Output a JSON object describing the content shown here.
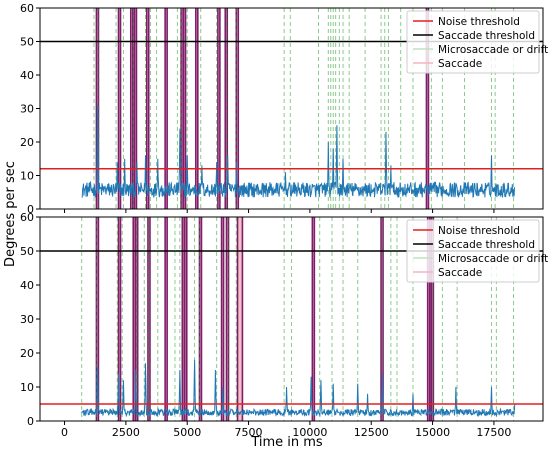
{
  "chart_data": [
    {
      "type": "line",
      "panel": "top",
      "xlim": [
        -1000,
        19500
      ],
      "ylim": [
        0,
        60
      ],
      "yticks": [
        0,
        10,
        20,
        30,
        40,
        50,
        60
      ],
      "ylabel": "Degrees per sec",
      "thresholds": [
        {
          "name": "Noise threshold",
          "value": 12,
          "color": "#e02020"
        },
        {
          "name": "Saccade threshold",
          "value": 50,
          "color": "#000000"
        }
      ],
      "legend": {
        "placement": "top-right",
        "entries": [
          "Noise threshold",
          "Saccade threshold",
          "Microsaccade or drift",
          "Saccade"
        ]
      },
      "series_color": "#1f77b4",
      "baseline_range": [
        1,
        8
      ],
      "signal_x_range": [
        700,
        18350
      ],
      "spikes": [
        {
          "x": 1350,
          "y": 31
        },
        {
          "x": 2150,
          "y": 14
        },
        {
          "x": 2450,
          "y": 15
        },
        {
          "x": 2950,
          "y": 14
        },
        {
          "x": 3300,
          "y": 16
        },
        {
          "x": 3800,
          "y": 15
        },
        {
          "x": 4700,
          "y": 24
        },
        {
          "x": 5000,
          "y": 16
        },
        {
          "x": 5600,
          "y": 13
        },
        {
          "x": 6200,
          "y": 14
        },
        {
          "x": 6650,
          "y": 16
        },
        {
          "x": 7000,
          "y": 14
        },
        {
          "x": 9000,
          "y": 11
        },
        {
          "x": 10750,
          "y": 20
        },
        {
          "x": 10950,
          "y": 18
        },
        {
          "x": 11100,
          "y": 25
        },
        {
          "x": 11350,
          "y": 15
        },
        {
          "x": 13100,
          "y": 23
        },
        {
          "x": 13300,
          "y": 13
        },
        {
          "x": 17400,
          "y": 16
        }
      ],
      "microsaccade_x": [
        1200,
        1400,
        2100,
        2400,
        2800,
        3300,
        3500,
        3750,
        4600,
        4750,
        5000,
        5550,
        6200,
        6600,
        7000,
        8950,
        9200,
        10350,
        10750,
        10850,
        10950,
        11050,
        11200,
        11350,
        11600,
        12250,
        12900,
        13050,
        13200,
        13700,
        14200,
        14950,
        15400,
        16300,
        17400,
        17550,
        18300
      ],
      "saccades": [
        {
          "x": 1300,
          "width": 60
        },
        {
          "x": 2200,
          "width": 50
        },
        {
          "x": 2700,
          "width": 60
        },
        {
          "x": 2850,
          "width": 50
        },
        {
          "x": 3350,
          "width": 60
        },
        {
          "x": 4100,
          "width": 50
        },
        {
          "x": 4750,
          "width": 60
        },
        {
          "x": 4850,
          "width": 50
        },
        {
          "x": 5350,
          "width": 60
        },
        {
          "x": 6250,
          "width": 60
        },
        {
          "x": 6550,
          "width": 50
        },
        {
          "x": 7000,
          "width": 60
        },
        {
          "x": 14750,
          "width": 60
        }
      ]
    },
    {
      "type": "line",
      "panel": "bottom",
      "xlim": [
        -1000,
        19500
      ],
      "ylim": [
        0,
        60
      ],
      "xticks": [
        0,
        2500,
        5000,
        7500,
        10000,
        12500,
        15000,
        17500
      ],
      "yticks": [
        0,
        10,
        20,
        30,
        40,
        50,
        60
      ],
      "xlabel": "Time in ms",
      "ylabel": "Degrees per sec",
      "thresholds": [
        {
          "name": "Noise threshold",
          "value": 5,
          "color": "#e02020"
        },
        {
          "name": "Saccade threshold",
          "value": 50,
          "color": "#000000"
        }
      ],
      "legend": {
        "placement": "top-right",
        "entries": [
          "Noise threshold",
          "Saccade threshold",
          "Microsaccade or drift",
          "Saccade"
        ]
      },
      "series_color": "#1f77b4",
      "baseline_range": [
        0.5,
        3.5
      ],
      "signal_x_range": [
        700,
        18350
      ],
      "spikes": [
        {
          "x": 1350,
          "y": 16
        },
        {
          "x": 2200,
          "y": 14
        },
        {
          "x": 2400,
          "y": 12
        },
        {
          "x": 2900,
          "y": 15
        },
        {
          "x": 3300,
          "y": 17
        },
        {
          "x": 4700,
          "y": 15
        },
        {
          "x": 5300,
          "y": 18
        },
        {
          "x": 6150,
          "y": 15
        },
        {
          "x": 6450,
          "y": 10
        },
        {
          "x": 9050,
          "y": 10
        },
        {
          "x": 10050,
          "y": 13
        },
        {
          "x": 10450,
          "y": 12
        },
        {
          "x": 10950,
          "y": 11
        },
        {
          "x": 11950,
          "y": 11
        },
        {
          "x": 12350,
          "y": 8
        },
        {
          "x": 12950,
          "y": 14
        },
        {
          "x": 14200,
          "y": 8
        },
        {
          "x": 15950,
          "y": 10
        },
        {
          "x": 17400,
          "y": 10
        },
        {
          "x": 18350,
          "y": 5
        }
      ],
      "microsaccade_x": [
        700,
        1300,
        2150,
        2350,
        2950,
        3250,
        3450,
        3800,
        4500,
        4700,
        5300,
        5500,
        6200,
        6700,
        7000,
        8950,
        9250,
        10400,
        10900,
        11350,
        11950,
        12950,
        13300,
        13550,
        14200,
        15000,
        15400,
        16000,
        17400,
        17600,
        18300
      ],
      "saccades": [
        {
          "x": 1300,
          "width": 60
        },
        {
          "x": 2200,
          "width": 60
        },
        {
          "x": 2800,
          "width": 50
        },
        {
          "x": 2900,
          "width": 50
        },
        {
          "x": 3400,
          "width": 60
        },
        {
          "x": 4100,
          "width": 50
        },
        {
          "x": 4800,
          "width": 60
        },
        {
          "x": 4900,
          "width": 50
        },
        {
          "x": 5500,
          "width": 60
        },
        {
          "x": 6400,
          "width": 60
        },
        {
          "x": 6600,
          "width": 50
        },
        {
          "x": 7050,
          "width": 200
        },
        {
          "x": 10100,
          "width": 60
        },
        {
          "x": 12900,
          "width": 60
        },
        {
          "x": 14800,
          "width": 60
        },
        {
          "x": 14950,
          "width": 50
        }
      ]
    }
  ]
}
